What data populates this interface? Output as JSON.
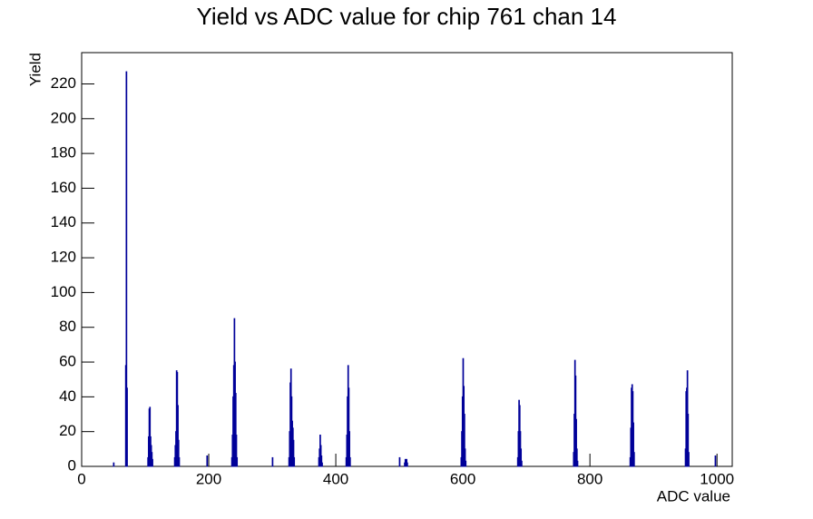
{
  "chart_data": {
    "type": "histogram",
    "title": "Yield vs ADC value for chip 761 chan 14",
    "x_label": "ADC value",
    "y_label": "Yield",
    "color": "#000099",
    "bins": [
      0,
      50,
      51,
      69,
      70,
      71,
      72,
      104,
      105,
      106,
      107,
      108,
      109,
      110,
      111,
      112,
      146,
      147,
      148,
      149,
      150,
      151,
      152,
      153,
      154,
      197,
      198,
      236,
      237,
      238,
      239,
      240,
      241,
      242,
      243,
      244,
      245,
      300,
      301,
      326,
      327,
      328,
      329,
      330,
      331,
      332,
      333,
      334,
      335,
      373,
      374,
      375,
      376,
      377,
      378,
      379,
      416,
      417,
      418,
      419,
      420,
      421,
      422,
      423,
      500,
      501,
      508,
      509,
      510,
      511,
      512,
      513,
      597,
      598,
      599,
      600,
      601,
      602,
      603,
      604,
      605,
      686,
      687,
      688,
      689,
      690,
      691,
      692,
      693,
      774,
      775,
      776,
      777,
      778,
      779,
      780,
      781,
      863,
      864,
      865,
      866,
      867,
      868,
      869,
      870,
      950,
      951,
      952,
      953,
      954,
      955,
      956,
      997,
      998,
      1024
    ],
    "values": [
      0,
      2,
      0,
      58,
      227,
      45,
      0,
      5,
      17,
      33,
      34,
      17,
      12,
      8,
      4,
      0,
      5,
      12,
      20,
      55,
      54,
      35,
      15,
      5,
      0,
      6,
      0,
      5,
      18,
      40,
      58,
      85,
      60,
      42,
      18,
      5,
      0,
      5,
      0,
      5,
      20,
      48,
      56,
      40,
      26,
      22,
      15,
      5,
      0,
      5,
      10,
      18,
      12,
      6,
      2,
      0,
      5,
      18,
      40,
      58,
      45,
      20,
      5,
      0,
      5,
      0,
      2,
      4,
      3,
      4,
      2,
      0,
      5,
      20,
      40,
      62,
      46,
      30,
      10,
      3,
      0,
      5,
      20,
      38,
      35,
      20,
      10,
      3,
      0,
      8,
      30,
      61,
      52,
      27,
      10,
      3,
      0,
      5,
      22,
      45,
      47,
      43,
      25,
      8,
      0,
      10,
      43,
      45,
      55,
      30,
      8,
      0,
      6,
      0
    ],
    "xlim": [
      0,
      1024
    ],
    "ylim": [
      0,
      238
    ],
    "xticks": [
      0,
      200,
      400,
      600,
      800,
      1000
    ],
    "yticks": [
      0,
      20,
      40,
      60,
      80,
      100,
      120,
      140,
      160,
      180,
      200,
      220
    ]
  }
}
